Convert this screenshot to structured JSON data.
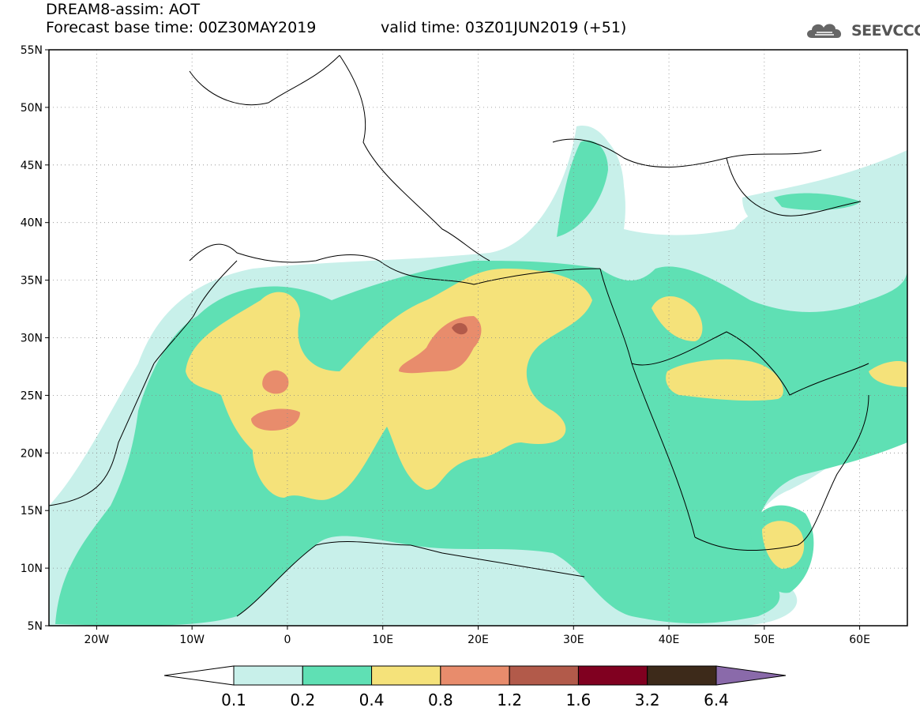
{
  "header": {
    "title_line1": "DREAM8-assim: AOT",
    "title_line2": "Forecast base time: 00Z30MAY2019",
    "valid_time": "valid time: 03Z01JUN2019 (+51)",
    "logo_text": "SEEVCCC",
    "logo_icon": "cloud-icon"
  },
  "map": {
    "lon_range": [
      -25,
      65
    ],
    "lat_range": [
      5,
      55
    ],
    "lat_ticks": [
      {
        "value": 55,
        "label": "55N"
      },
      {
        "value": 50,
        "label": "50N"
      },
      {
        "value": 45,
        "label": "45N"
      },
      {
        "value": 40,
        "label": "40N"
      },
      {
        "value": 35,
        "label": "35N"
      },
      {
        "value": 30,
        "label": "30N"
      },
      {
        "value": 25,
        "label": "25N"
      },
      {
        "value": 20,
        "label": "20N"
      },
      {
        "value": 15,
        "label": "15N"
      },
      {
        "value": 10,
        "label": "10N"
      },
      {
        "value": 5,
        "label": "5N"
      }
    ],
    "lon_ticks": [
      {
        "value": -20,
        "label": "20W"
      },
      {
        "value": -10,
        "label": "10W"
      },
      {
        "value": 0,
        "label": "0"
      },
      {
        "value": 10,
        "label": "10E"
      },
      {
        "value": 20,
        "label": "20E"
      },
      {
        "value": 30,
        "label": "30E"
      },
      {
        "value": 40,
        "label": "40E"
      },
      {
        "value": 50,
        "label": "50E"
      },
      {
        "value": 60,
        "label": "60E"
      }
    ],
    "grid": true
  },
  "colorbar": {
    "labels": [
      "0.1",
      "0.2",
      "0.4",
      "0.8",
      "1.2",
      "1.6",
      "3.2",
      "6.4"
    ],
    "colors": [
      "#ffffff",
      "#c8f0ea",
      "#5fe0b4",
      "#f5e27a",
      "#e88c6c",
      "#b25a4a",
      "#800020",
      "#3d2a1a",
      "#8a6aaa"
    ]
  }
}
